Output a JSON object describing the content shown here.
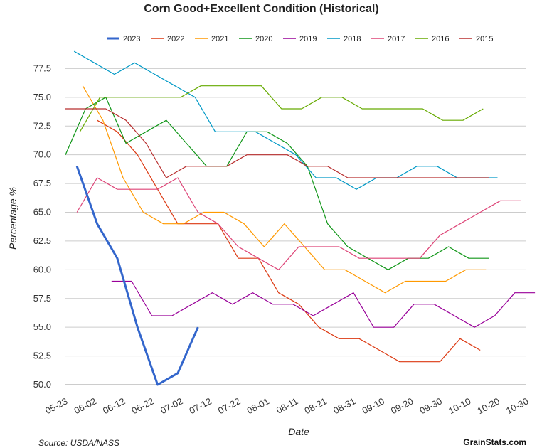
{
  "chart_data": {
    "type": "line",
    "title": "Corn Good+Excellent Condition (Historical)",
    "xlabel": "Date",
    "ylabel": "Percentage %",
    "source": "Source: USDA/NASS",
    "brand": "GrainStats.com",
    "x_ticks": [
      "05-23",
      "06-02",
      "06-12",
      "06-22",
      "07-02",
      "07-12",
      "07-22",
      "08-01",
      "08-11",
      "08-21",
      "08-31",
      "09-10",
      "09-20",
      "09-30",
      "10-10",
      "10-20",
      "10-30"
    ],
    "y_ticks": [
      "50.0",
      "52.5",
      "55.0",
      "57.5",
      "60.0",
      "62.5",
      "65.0",
      "67.5",
      "70.0",
      "72.5",
      "75.0",
      "77.5"
    ],
    "ylim": [
      50,
      80
    ],
    "x_unit": "days since 05-23",
    "xlim": [
      0,
      160
    ],
    "legend_position": "top",
    "grid": true,
    "series": [
      {
        "name": "2023",
        "color": "#3366cc",
        "bold": true,
        "points": [
          [
            4,
            69
          ],
          [
            11,
            64
          ],
          [
            18,
            61
          ],
          [
            25,
            55
          ],
          [
            32,
            50
          ],
          [
            39,
            51
          ],
          [
            46,
            55
          ]
        ]
      },
      {
        "name": "2022",
        "color": "#dc3912",
        "points": [
          [
            11,
            73
          ],
          [
            18,
            72
          ],
          [
            25,
            70
          ],
          [
            32,
            67
          ],
          [
            39,
            64
          ],
          [
            46,
            64
          ],
          [
            53,
            64
          ],
          [
            60,
            61
          ],
          [
            67,
            61
          ],
          [
            74,
            58
          ],
          [
            81,
            57
          ],
          [
            88,
            55
          ],
          [
            95,
            54
          ],
          [
            102,
            54
          ],
          [
            109,
            53
          ],
          [
            116,
            52
          ],
          [
            123,
            52
          ],
          [
            130,
            52
          ],
          [
            137,
            54
          ],
          [
            144,
            53
          ]
        ]
      },
      {
        "name": "2021",
        "color": "#ff9900",
        "points": [
          [
            6,
            76
          ],
          [
            13,
            73
          ],
          [
            20,
            68
          ],
          [
            27,
            65
          ],
          [
            34,
            64
          ],
          [
            41,
            64
          ],
          [
            48,
            65
          ],
          [
            55,
            65
          ],
          [
            62,
            64
          ],
          [
            69,
            62
          ],
          [
            76,
            64
          ],
          [
            83,
            62
          ],
          [
            90,
            60
          ],
          [
            97,
            60
          ],
          [
            104,
            59
          ],
          [
            111,
            58
          ],
          [
            118,
            59
          ],
          [
            125,
            59
          ],
          [
            132,
            59
          ],
          [
            139,
            60
          ],
          [
            146,
            60
          ]
        ]
      },
      {
        "name": "2020",
        "color": "#109618",
        "points": [
          [
            0,
            70
          ],
          [
            7,
            74
          ],
          [
            14,
            75
          ],
          [
            21,
            71
          ],
          [
            28,
            72
          ],
          [
            35,
            73
          ],
          [
            42,
            71
          ],
          [
            49,
            69
          ],
          [
            56,
            69
          ],
          [
            63,
            72
          ],
          [
            70,
            72
          ],
          [
            77,
            71
          ],
          [
            84,
            69
          ],
          [
            91,
            64
          ],
          [
            98,
            62
          ],
          [
            105,
            61
          ],
          [
            112,
            60
          ],
          [
            119,
            61
          ],
          [
            126,
            61
          ],
          [
            133,
            62
          ],
          [
            140,
            61
          ],
          [
            147,
            61
          ]
        ]
      },
      {
        "name": "2019",
        "color": "#990099",
        "points": [
          [
            16,
            59
          ],
          [
            23,
            59
          ],
          [
            30,
            56
          ],
          [
            37,
            56
          ],
          [
            44,
            57
          ],
          [
            51,
            58
          ],
          [
            58,
            57
          ],
          [
            65,
            58
          ],
          [
            72,
            57
          ],
          [
            79,
            57
          ],
          [
            86,
            56
          ],
          [
            93,
            57
          ],
          [
            100,
            58
          ],
          [
            107,
            55
          ],
          [
            114,
            55
          ],
          [
            121,
            57
          ],
          [
            128,
            57
          ],
          [
            135,
            56
          ],
          [
            142,
            55
          ],
          [
            149,
            56
          ],
          [
            156,
            58
          ],
          [
            163,
            58
          ]
        ]
      },
      {
        "name": "2018",
        "color": "#0099c6",
        "points": [
          [
            3,
            79
          ],
          [
            10,
            78
          ],
          [
            17,
            77
          ],
          [
            24,
            78
          ],
          [
            31,
            77
          ],
          [
            38,
            76
          ],
          [
            45,
            75
          ],
          [
            52,
            72
          ],
          [
            59,
            72
          ],
          [
            66,
            72
          ],
          [
            73,
            71
          ],
          [
            80,
            70
          ],
          [
            87,
            68
          ],
          [
            94,
            68
          ],
          [
            101,
            67
          ],
          [
            108,
            68
          ],
          [
            115,
            68
          ],
          [
            122,
            69
          ],
          [
            129,
            69
          ],
          [
            136,
            68
          ],
          [
            143,
            68
          ],
          [
            150,
            68
          ]
        ]
      },
      {
        "name": "2017",
        "color": "#dd4477",
        "points": [
          [
            4,
            65
          ],
          [
            11,
            68
          ],
          [
            18,
            67
          ],
          [
            25,
            67
          ],
          [
            32,
            67
          ],
          [
            39,
            68
          ],
          [
            46,
            65
          ],
          [
            53,
            64
          ],
          [
            60,
            62
          ],
          [
            67,
            61
          ],
          [
            74,
            60
          ],
          [
            81,
            62
          ],
          [
            88,
            62
          ],
          [
            95,
            62
          ],
          [
            102,
            61
          ],
          [
            109,
            61
          ],
          [
            116,
            61
          ],
          [
            123,
            61
          ],
          [
            130,
            63
          ],
          [
            137,
            64
          ],
          [
            144,
            65
          ],
          [
            151,
            66
          ],
          [
            158,
            66
          ]
        ]
      },
      {
        "name": "2016",
        "color": "#66aa00",
        "points": [
          [
            5,
            72
          ],
          [
            12,
            75
          ],
          [
            19,
            75
          ],
          [
            26,
            75
          ],
          [
            33,
            75
          ],
          [
            40,
            75
          ],
          [
            47,
            76
          ],
          [
            54,
            76
          ],
          [
            61,
            76
          ],
          [
            68,
            76
          ],
          [
            75,
            74
          ],
          [
            82,
            74
          ],
          [
            89,
            75
          ],
          [
            96,
            75
          ],
          [
            103,
            74
          ],
          [
            110,
            74
          ],
          [
            117,
            74
          ],
          [
            124,
            74
          ],
          [
            131,
            73
          ],
          [
            138,
            73
          ],
          [
            145,
            74
          ]
        ]
      },
      {
        "name": "2015",
        "color": "#b82e2e",
        "points": [
          [
            0,
            74
          ],
          [
            7,
            74
          ],
          [
            14,
            74
          ],
          [
            21,
            73
          ],
          [
            28,
            71
          ],
          [
            35,
            68
          ],
          [
            42,
            69
          ],
          [
            49,
            69
          ],
          [
            56,
            69
          ],
          [
            63,
            70
          ],
          [
            70,
            70
          ],
          [
            77,
            70
          ],
          [
            84,
            69
          ],
          [
            91,
            69
          ],
          [
            98,
            68
          ],
          [
            105,
            68
          ],
          [
            112,
            68
          ],
          [
            119,
            68
          ],
          [
            126,
            68
          ],
          [
            133,
            68
          ],
          [
            140,
            68
          ],
          [
            147,
            68
          ]
        ]
      }
    ]
  }
}
